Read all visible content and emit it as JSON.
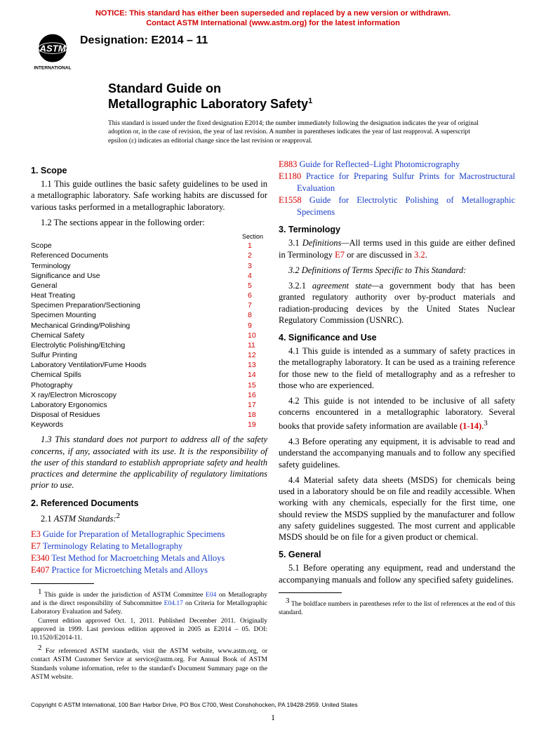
{
  "notice": {
    "line1": "NOTICE: This standard has either been superseded and replaced by a new version or withdrawn.",
    "line2": "Contact ASTM International (www.astm.org) for the latest information",
    "color": "#d40000"
  },
  "logo": {
    "topText": "ASTM",
    "bottomText": "INTERNATIONAL"
  },
  "designation": "Designation: E2014 – 11",
  "title": {
    "line1": "Standard Guide on",
    "line2": "Metallographic Laboratory Safety",
    "sup": "1"
  },
  "issueNote": "This standard is issued under the fixed designation E2014; the number immediately following the designation indicates the year of original adoption or, in the case of revision, the year of last revision. A number in parentheses indicates the year of last reapproval. A superscript epsilon (ε) indicates an editorial change since the last revision or reapproval.",
  "leftCol": {
    "scope": {
      "heading": "1. Scope",
      "p1": "1.1 This guide outlines the basic safety guidelines to be used in a metallographic laboratory. Safe working habits are discussed for various tasks performed in a metallographic laboratory.",
      "p2": "1.2 The sections appear in the following order:"
    },
    "tocHeader": "Section",
    "toc": [
      {
        "t": "Scope",
        "n": "1"
      },
      {
        "t": "Referenced Documents",
        "n": "2"
      },
      {
        "t": "Terminology",
        "n": "3"
      },
      {
        "t": "Significance and Use",
        "n": "4"
      },
      {
        "t": "General",
        "n": "5"
      },
      {
        "t": "Heat Treating",
        "n": "6"
      },
      {
        "t": "Specimen Preparation/Sectioning",
        "n": "7"
      },
      {
        "t": "Specimen Mounting",
        "n": "8"
      },
      {
        "t": "Mechanical Grinding/Polishing",
        "n": "9"
      },
      {
        "t": "Chemical Safety",
        "n": "10"
      },
      {
        "t": "Electrolytic Polishing/Etching",
        "n": "11"
      },
      {
        "t": "Sulfur Printing",
        "n": "12"
      },
      {
        "t": "Laboratory Ventilation/Fume Hoods",
        "n": "13"
      },
      {
        "t": "Chemical Spills",
        "n": "14"
      },
      {
        "t": "Photography",
        "n": "15"
      },
      {
        "t": "X ray/Electron Microscopy",
        "n": "16"
      },
      {
        "t": "Laboratory Ergonomics",
        "n": "17"
      },
      {
        "t": "Disposal of Residues",
        "n": "18"
      },
      {
        "t": "Keywords",
        "n": "19"
      }
    ],
    "p3": "1.3 This standard does not purport to address all of the safety concerns, if any, associated with its use. It is the responsibility of the user of this standard to establish appropriate safety and health practices and determine the applicability of regulatory limitations prior to use.",
    "refdocs": {
      "heading": "2. Referenced Documents",
      "sub": "2.1 ",
      "subItalic": "ASTM Standards:",
      "subSup": "2",
      "items": [
        {
          "code": "E3",
          "title": "Guide for Preparation of Metallographic Specimens"
        },
        {
          "code": "E7",
          "title": "Terminology Relating to Metallography"
        },
        {
          "code": "E340",
          "title": "Test Method for Macroetching Metals and Alloys"
        },
        {
          "code": "E407",
          "title": "Practice for Microetching Metals and Alloys"
        }
      ]
    },
    "footnotes": {
      "f1a": "This guide is under the jurisdiction of ASTM Committee ",
      "f1link1": "E04",
      "f1b": " on Metallography and is the direct responsibility of Subcommittee ",
      "f1link2": "E04.17",
      "f1c": " on Criteria for Metallographic Laboratory Evaluation and Safety.",
      "f1d": "Current edition approved Oct. 1, 2011. Published December 2011. Originally approved in 1999. Last previous edition approved in 2005 as E2014 – 05. DOI: 10.1520/E2014-11.",
      "f2": "For referenced ASTM standards, visit the ASTM website, www.astm.org, or contact ASTM Customer Service at service@astm.org. For Annual Book of ASTM Standards volume information, refer to the standard's Document Summary page on the ASTM website.",
      "f1sup": "1",
      "f2sup": "2"
    }
  },
  "rightCol": {
    "moreRefs": [
      {
        "code": "E883",
        "title": "Guide for Reflected–Light Photomicrography"
      },
      {
        "code": "E1180",
        "title": "Practice for Preparing Sulfur Prints for Macrostructural Evaluation"
      },
      {
        "code": "E1558",
        "title": "Guide for Electrolytic Polishing of Metallographic Specimens"
      }
    ],
    "terminology": {
      "heading": "3. Terminology",
      "p1a": "3.1 ",
      "p1i": "Definitions—",
      "p1b": "All terms used in this guide are either defined in Terminology ",
      "p1link": "E7",
      "p1c": " or are discussed in ",
      "p1link2": "3.2",
      "p1d": ".",
      "p2": "3.2 Definitions of Terms Specific to This Standard:",
      "p3a": "3.2.1 ",
      "p3i": "agreement state—",
      "p3b": "a government body that has been granted regulatory authority over by-product materials and radiation-producing devices by the United States Nuclear Regulatory Commission (USNRC)."
    },
    "significance": {
      "heading": "4. Significance and Use",
      "p1": "4.1 This guide is intended as a summary of safety practices in the metallography laboratory. It can be used as a training reference for those new to the field of metallography and as a refresher to those who are experienced.",
      "p2a": "4.2 This guide is not intended to be inclusive of all safety concerns encountered in a metallographic laboratory. Several books that provide safety information are available ",
      "p2link": "(1-14)",
      "p2b": ".",
      "p2sup": "3",
      "p3": "4.3 Before operating any equipment, it is advisable to read and understand the accompanying manuals and to follow any specified safety guidelines.",
      "p4": "4.4 Material safety data sheets (MSDS) for chemicals being used in a laboratory should be on file and readily accessible. When working with any chemicals, especially for the first time, one should review the MSDS supplied by the manufacturer and follow any safety guidelines suggested. The most current and applicable MSDS should be on file for a given product or chemical."
    },
    "general": {
      "heading": "5. General",
      "p1": "5.1 Before operating any equipment, read and understand the accompanying manuals and follow any specified safety guidelines."
    },
    "footnote3": {
      "sup": "3",
      "text": "The boldface numbers in parentheses refer to the list of references at the end of this standard."
    }
  },
  "copyright": "Copyright © ASTM International, 100 Barr Harbor Drive, PO Box C700, West Conshohocken, PA 19428-2959. United States",
  "pageNumber": "1",
  "colors": {
    "red": "#d40000",
    "blue": "#1a3fc9"
  }
}
